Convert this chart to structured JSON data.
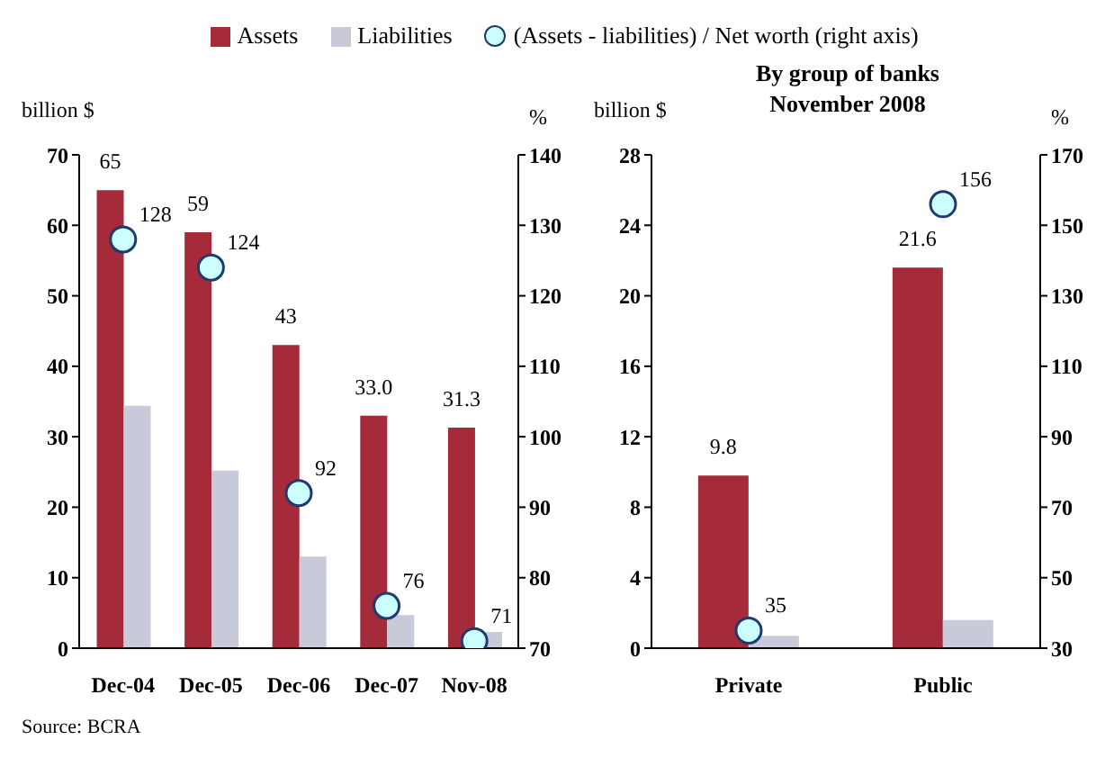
{
  "chart_data": [
    {
      "type": "bar",
      "ylabel": "billion $",
      "y2label": "%",
      "legend": "top",
      "categories": [
        "Dec-04",
        "Dec-05",
        "Dec-06",
        "Dec-07",
        "Nov-08"
      ],
      "series": [
        {
          "name": "Assets",
          "color": "#a52a3a",
          "values": [
            65,
            59,
            43,
            33.0,
            31.3
          ],
          "value_labels": [
            "65",
            "59",
            "43",
            "33.0",
            "31.3"
          ]
        },
        {
          "name": "Liabilities",
          "color": "#c9cad9",
          "values": [
            34.4,
            25.2,
            13,
            4.7,
            2.3
          ]
        },
        {
          "name": "(Assets - liabilities) / Net worth (right axis)",
          "type": "scatter",
          "axis": "y2",
          "color": "#ccffff",
          "values": [
            128,
            124,
            92,
            76,
            71
          ],
          "value_labels": [
            "128",
            "124",
            "92",
            "76",
            "71"
          ]
        }
      ],
      "ylim": [
        0,
        70
      ],
      "yticks": [
        0,
        10,
        20,
        30,
        40,
        50,
        60,
        70
      ],
      "y2lim": [
        70,
        140
      ],
      "y2ticks": [
        70,
        80,
        90,
        100,
        110,
        120,
        130,
        140
      ],
      "grid": false,
      "marker": "circle",
      "annotations": [
        "Source: BCRA"
      ]
    },
    {
      "type": "bar",
      "title": "By group of banks\nNovember 2008",
      "ylabel": "billion $",
      "y2label": "%",
      "categories": [
        "Private",
        "Public"
      ],
      "series": [
        {
          "color": "#a52a3a",
          "values": [
            9.8,
            21.6
          ],
          "value_labels": [
            "9.8",
            "21.6"
          ]
        },
        {
          "color": "#c9cad9",
          "values": [
            0.7,
            1.6
          ]
        },
        {
          "type": "scatter",
          "axis": "y2",
          "color": "#ccffff",
          "values": [
            35,
            156
          ],
          "value_labels": [
            "35",
            "156"
          ]
        }
      ],
      "ylim": [
        0,
        28
      ],
      "yticks": [
        0,
        4,
        8,
        12,
        16,
        20,
        24,
        28
      ],
      "y2lim": [
        30,
        170
      ],
      "y2ticks": [
        30,
        50,
        70,
        90,
        110,
        130,
        150,
        170
      ],
      "grid": false,
      "marker": "circle"
    }
  ]
}
